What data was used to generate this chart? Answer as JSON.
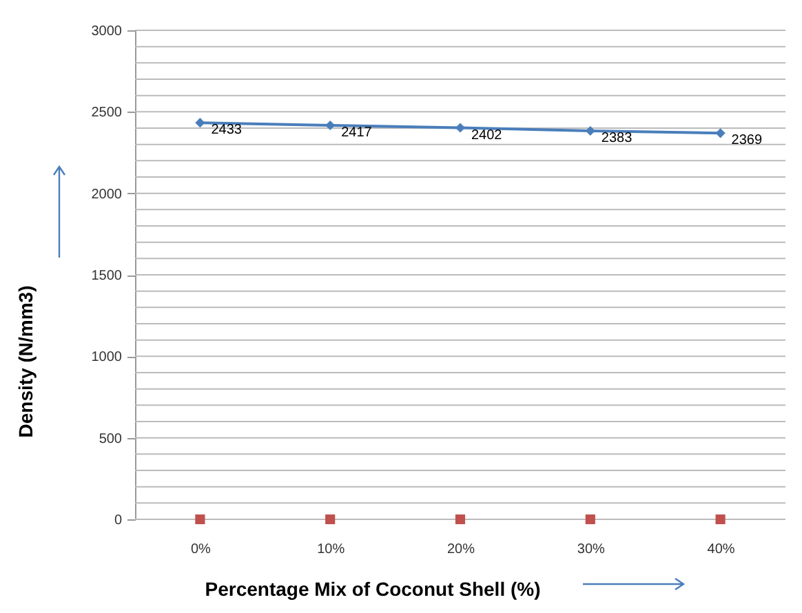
{
  "chart_data": {
    "type": "line",
    "xlabel": "Percentage Mix of Coconut Shell (%)",
    "ylabel": "Density (N/mm3)",
    "categories": [
      "0%",
      "10%",
      "20%",
      "30%",
      "40%"
    ],
    "series": [
      {
        "color": "#4a7ebb",
        "marker": "diamond",
        "values": [
          2433,
          2417,
          2402,
          2383,
          2369
        ],
        "value_labels": [
          "2433",
          "2417",
          "2402",
          "2383",
          "2369"
        ]
      },
      {
        "type": "scatter",
        "color": "#c0504d",
        "marker": "square",
        "values": [
          0,
          0,
          0,
          0,
          0
        ]
      }
    ],
    "ylim": [
      0,
      3000
    ],
    "yticks": [
      0,
      {
        "value": 100,
        "label": null
      },
      {
        "value": 200,
        "label": null
      },
      {
        "value": 300,
        "label": null
      },
      {
        "value": 400,
        "label": null
      },
      500,
      {
        "value": 600,
        "label": null
      },
      {
        "value": 700,
        "label": null
      },
      {
        "value": 800,
        "label": null
      },
      {
        "value": 900,
        "label": null
      },
      1000,
      {
        "value": 1100,
        "label": null
      },
      {
        "value": 1200,
        "label": null
      },
      {
        "value": 1300,
        "label": null
      },
      {
        "value": 1400,
        "label": null
      },
      1500,
      {
        "value": 1600,
        "label": null
      },
      {
        "value": 1700,
        "label": null
      },
      {
        "value": 1800,
        "label": null
      },
      {
        "value": 1900,
        "label": null
      },
      2000,
      {
        "value": 2100,
        "label": null
      },
      {
        "value": 2200,
        "label": null
      },
      {
        "value": 2300,
        "label": null
      },
      {
        "value": 2400,
        "label": null
      },
      2500,
      {
        "value": 2600,
        "label": null
      },
      {
        "value": 2700,
        "label": null
      },
      {
        "value": 2800,
        "label": null
      },
      {
        "value": 2900,
        "label": null
      },
      3000
    ],
    "grid": "y"
  }
}
